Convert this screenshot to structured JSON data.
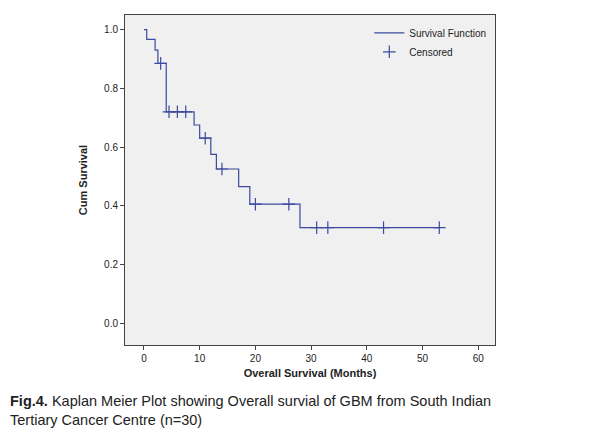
{
  "chart_data": {
    "type": "survival",
    "x_label": "Overall Survival (Months)",
    "y_label": "Cum Survival",
    "caption": {
      "label": "Fig.4.",
      "lines": [
        "Kaplan Meier Plot showing Overall survial of GBM from South Indian",
        "Tertiary Cancer Centre (n=30)"
      ]
    },
    "series": [
      {
        "name": "Survival Function",
        "type": "line",
        "line_style": "step",
        "color": "#3b4a9e",
        "x": [
          0,
          0.5,
          2,
          2.5,
          4,
          9,
          10,
          12,
          13,
          17,
          19,
          28,
          53
        ],
        "values": [
          1.0,
          0.967,
          0.93,
          0.885,
          0.72,
          0.675,
          0.63,
          0.575,
          0.525,
          0.465,
          0.405,
          0.325,
          0.325
        ]
      },
      {
        "name": "Censored",
        "type": "scatter",
        "marker": "cross",
        "color": "#3b4a9e",
        "x": [
          3,
          4.5,
          6,
          7.5,
          11,
          14,
          20,
          26,
          31,
          33,
          43,
          53
        ],
        "values": [
          0.885,
          0.72,
          0.72,
          0.72,
          0.63,
          0.525,
          0.405,
          0.405,
          0.325,
          0.325,
          0.325,
          0.325
        ]
      }
    ],
    "xlim": [
      -3.4,
      63
    ],
    "xticks": [
      0,
      10,
      20,
      30,
      40,
      50,
      60
    ],
    "ylim": [
      -0.075,
      1.05
    ],
    "yticks": [
      {
        "value": 0,
        "label": "0.0"
      },
      {
        "value": 0.2,
        "label": "0.2"
      },
      {
        "value": 0.4,
        "label": "0.4"
      },
      {
        "value": 0.6,
        "label": "0.6"
      },
      {
        "value": 0.8,
        "label": "0.8"
      },
      {
        "value": 1.0,
        "label": "1.0"
      }
    ],
    "legend": "upper right",
    "grid": false
  }
}
